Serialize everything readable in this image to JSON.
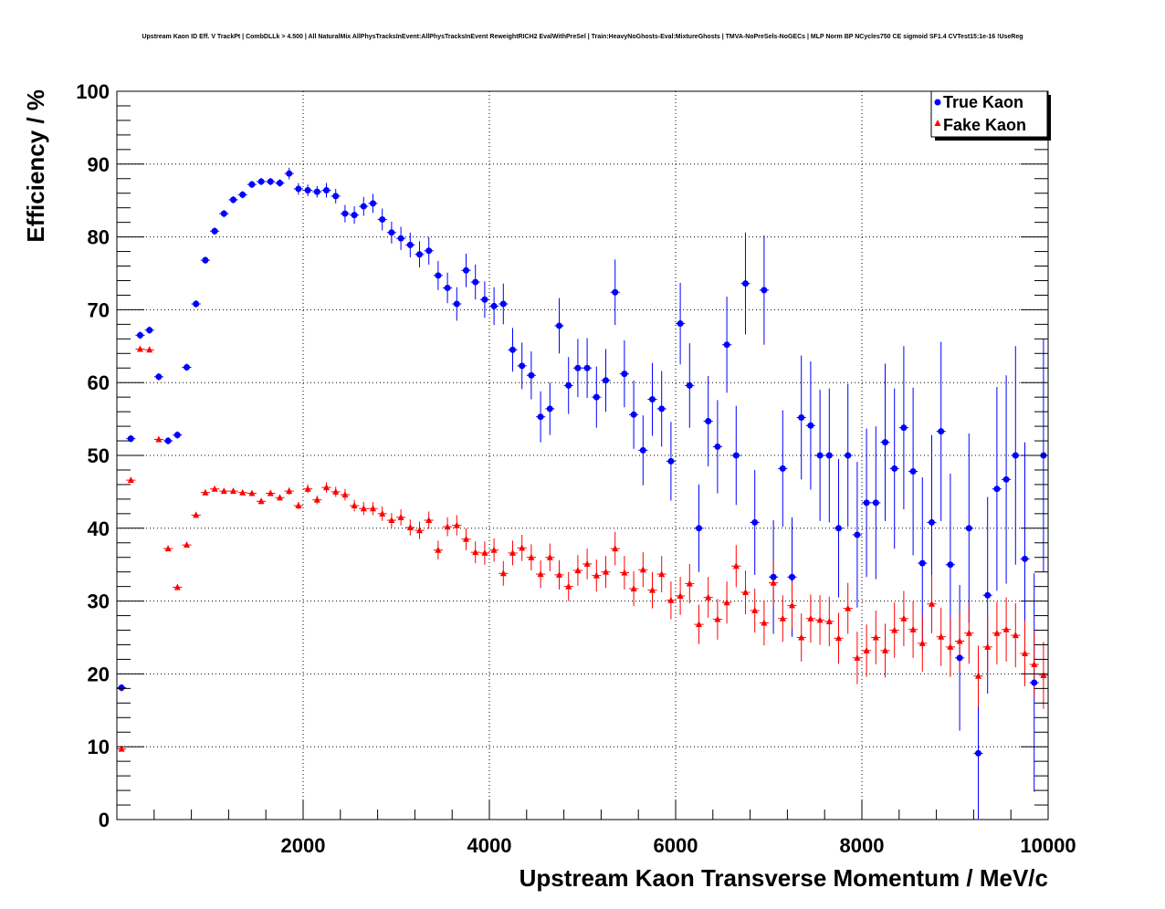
{
  "chart_data": {
    "type": "scatter",
    "title": "Upstream Kaon ID Eff. V TrackPt | CombDLLk > 4.500 | All NaturalMix AllPhysTracksInEvent:AllPhysTracksInEvent ReweightRICH2 EvalWithPreSel | Train:HeavyNoGhosts-Eval:MixtureGhosts | TMVA-NoPreSels-NoGECs | MLP Norm BP NCycles750 CE sigmoid SF1.4 CVTest15:1e-16 !UseReg",
    "xlabel": "Upstream Kaon Transverse Momentum / MeV/c",
    "ylabel": "Efficiency / %",
    "xlim": [
      0,
      10000
    ],
    "ylim": [
      0,
      100
    ],
    "xticks": [
      "2000",
      "4000",
      "6000",
      "8000",
      "10000"
    ],
    "yticks": [
      "0",
      "10",
      "20",
      "30",
      "40",
      "50",
      "60",
      "70",
      "80",
      "90",
      "100"
    ],
    "grid": true,
    "legend_position": "top-right",
    "series": [
      {
        "name": "True Kaon",
        "color": "#0000ff",
        "marker": "circle",
        "x": [
          50,
          150,
          250,
          350,
          450,
          550,
          650,
          750,
          850,
          950,
          1050,
          1150,
          1250,
          1350,
          1450,
          1550,
          1650,
          1750,
          1850,
          1950,
          2050,
          2150,
          2250,
          2350,
          2450,
          2550,
          2650,
          2750,
          2850,
          2950,
          3050,
          3150,
          3250,
          3350,
          3450,
          3550,
          3650,
          3750,
          3850,
          3950,
          4050,
          4150,
          4250,
          4350,
          4450,
          4550,
          4650,
          4750,
          4850,
          4950,
          5050,
          5150,
          5250,
          5350,
          5450,
          5550,
          5650,
          5750,
          5850,
          5950,
          6050,
          6150,
          6250,
          6350,
          6450,
          6550,
          6650,
          6750,
          6850,
          6950,
          7050,
          7150,
          7250,
          7350,
          7450,
          7550,
          7650,
          7750,
          7850,
          7950,
          8050,
          8150,
          8250,
          8350,
          8450,
          8550,
          8650,
          8750,
          8850,
          8950,
          9050,
          9150,
          9250,
          9350,
          9450,
          9550,
          9650,
          9750,
          9850,
          9950
        ],
        "y": [
          18.1,
          52.3,
          66.5,
          67.2,
          60.8,
          52.0,
          52.8,
          62.1,
          70.8,
          76.8,
          80.8,
          83.2,
          85.1,
          85.8,
          87.2,
          87.6,
          87.6,
          87.4,
          88.7,
          86.6,
          86.4,
          86.2,
          86.4,
          85.6,
          83.2,
          83.0,
          84.2,
          84.6,
          82.4,
          80.6,
          79.8,
          78.9,
          77.6,
          78.1,
          74.7,
          73.0,
          70.8,
          75.4,
          73.8,
          71.4,
          70.5,
          70.8,
          64.5,
          62.3,
          61.0,
          55.3,
          56.4,
          67.8,
          59.6,
          62.0,
          62.0,
          58.0,
          60.3,
          72.4,
          61.2,
          55.6,
          50.7,
          57.7,
          56.4,
          49.2,
          68.1,
          59.6,
          40.0,
          54.7,
          51.2,
          65.2,
          50.0,
          73.6,
          40.8,
          72.7,
          33.3,
          48.2,
          33.3,
          55.2,
          54.1,
          50.0,
          50.0,
          40.0,
          50.0,
          39.1,
          43.5,
          43.5,
          51.8,
          48.2,
          53.8,
          47.8,
          35.2,
          40.8,
          53.3,
          35.0,
          22.2,
          40.0,
          9.1,
          30.8,
          45.4,
          46.7,
          50.0,
          35.8,
          18.8,
          50.0
        ],
        "err": [
          0.5,
          0.5,
          0.5,
          0.5,
          0.5,
          0.5,
          0.5,
          0.5,
          0.5,
          0.5,
          0.5,
          0.5,
          0.5,
          0.5,
          0.5,
          0.5,
          0.5,
          0.5,
          0.8,
          0.8,
          0.8,
          0.8,
          1.0,
          1.0,
          1.2,
          1.2,
          1.3,
          1.3,
          1.5,
          1.5,
          1.6,
          1.7,
          1.8,
          1.9,
          2.0,
          2.1,
          2.3,
          2.3,
          2.4,
          2.5,
          2.6,
          2.8,
          3.0,
          3.2,
          3.3,
          3.5,
          3.6,
          3.8,
          3.9,
          4.0,
          4.1,
          4.2,
          4.3,
          4.5,
          4.6,
          4.7,
          4.8,
          5.0,
          5.2,
          5.4,
          5.6,
          5.8,
          6.0,
          6.2,
          6.4,
          6.6,
          6.8,
          7.0,
          7.2,
          7.5,
          7.8,
          8.0,
          8.2,
          8.5,
          8.8,
          9.0,
          9.2,
          9.5,
          9.8,
          10.0,
          10.2,
          10.5,
          10.8,
          11.0,
          11.2,
          11.5,
          11.8,
          12.0,
          12.3,
          12.5,
          10.0,
          13.0,
          9.0,
          13.5,
          14.0,
          14.3,
          15.0,
          16.0,
          15.0,
          16.0
        ]
      },
      {
        "name": "Fake Kaon",
        "color": "#ff0000",
        "marker": "triangle",
        "x": [
          50,
          150,
          250,
          350,
          450,
          550,
          650,
          750,
          850,
          950,
          1050,
          1150,
          1250,
          1350,
          1450,
          1550,
          1650,
          1750,
          1850,
          1950,
          2050,
          2150,
          2250,
          2350,
          2450,
          2550,
          2650,
          2750,
          2850,
          2950,
          3050,
          3150,
          3250,
          3350,
          3450,
          3550,
          3650,
          3750,
          3850,
          3950,
          4050,
          4150,
          4250,
          4350,
          4450,
          4550,
          4650,
          4750,
          4850,
          4950,
          5050,
          5150,
          5250,
          5350,
          5450,
          5550,
          5650,
          5750,
          5850,
          5950,
          6050,
          6150,
          6250,
          6350,
          6450,
          6550,
          6650,
          6750,
          6850,
          6950,
          7050,
          7150,
          7250,
          7350,
          7450,
          7550,
          7650,
          7750,
          7850,
          7950,
          8050,
          8150,
          8250,
          8350,
          8450,
          8550,
          8650,
          8750,
          8850,
          8950,
          9050,
          9150,
          9250,
          9350,
          9450,
          9550,
          9650,
          9750,
          9850,
          9950
        ],
        "y": [
          9.7,
          46.6,
          64.6,
          64.5,
          52.2,
          37.2,
          31.9,
          37.7,
          41.8,
          44.9,
          45.4,
          45.1,
          45.1,
          44.9,
          44.8,
          43.7,
          44.8,
          44.2,
          45.1,
          43.1,
          45.4,
          43.9,
          45.6,
          45.0,
          44.6,
          43.1,
          42.7,
          42.7,
          42.0,
          41.1,
          41.5,
          40.1,
          39.7,
          41.1,
          37.0,
          40.2,
          40.4,
          38.5,
          36.7,
          36.6,
          37.0,
          33.8,
          36.6,
          37.3,
          36.0,
          33.7,
          36.0,
          33.6,
          32.0,
          34.2,
          35.1,
          33.5,
          34.0,
          37.2,
          33.9,
          31.7,
          34.3,
          31.5,
          33.7,
          30.1,
          30.7,
          32.4,
          26.8,
          30.5,
          27.5,
          29.8,
          34.8,
          31.2,
          28.7,
          27.0,
          32.5,
          27.6,
          29.4,
          25.0,
          27.6,
          27.4,
          27.2,
          24.9,
          29.0,
          22.2,
          23.2,
          25.0,
          23.2,
          26.0,
          27.6,
          26.1,
          24.2,
          29.6,
          25.1,
          23.7,
          24.5,
          25.6,
          19.7,
          23.7,
          25.6,
          26.1,
          25.3,
          22.8,
          21.3,
          19.8
        ],
        "err": [
          0.2,
          0.3,
          0.3,
          0.3,
          0.3,
          0.3,
          0.3,
          0.3,
          0.3,
          0.3,
          0.3,
          0.3,
          0.3,
          0.3,
          0.3,
          0.4,
          0.4,
          0.4,
          0.5,
          0.5,
          0.6,
          0.6,
          0.7,
          0.7,
          0.8,
          0.8,
          0.9,
          0.9,
          1.0,
          1.0,
          1.1,
          1.1,
          1.2,
          1.2,
          1.3,
          1.3,
          1.4,
          1.5,
          1.5,
          1.6,
          1.6,
          1.7,
          1.7,
          1.8,
          1.8,
          1.9,
          1.9,
          2.0,
          2.0,
          2.1,
          2.1,
          2.2,
          2.2,
          2.3,
          2.3,
          2.4,
          2.4,
          2.5,
          2.5,
          2.6,
          2.6,
          2.7,
          2.7,
          2.8,
          2.8,
          2.9,
          2.9,
          3.0,
          3.0,
          3.1,
          3.1,
          3.2,
          3.2,
          3.3,
          3.3,
          3.4,
          3.4,
          3.5,
          3.5,
          3.6,
          3.6,
          3.7,
          3.7,
          3.8,
          3.8,
          3.9,
          3.9,
          4.0,
          4.0,
          4.1,
          4.1,
          4.2,
          4.2,
          4.3,
          4.3,
          4.4,
          4.4,
          4.5,
          4.5,
          4.6
        ]
      }
    ]
  }
}
